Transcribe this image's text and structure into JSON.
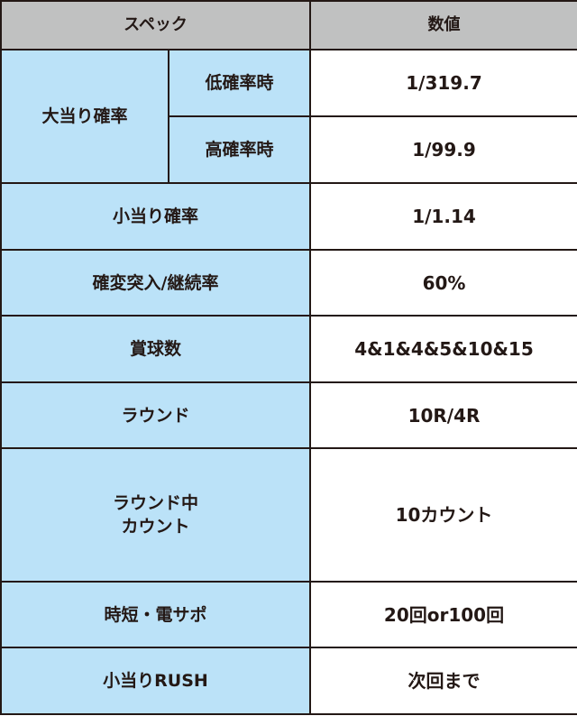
{
  "header": {
    "spec": "スペック",
    "value": "数値"
  },
  "jackpot": {
    "label": "大当り確率",
    "low_label": "低確率時",
    "low_value": "1/319.7",
    "high_label": "高確率時",
    "high_value": "1/99.9"
  },
  "rows": [
    {
      "label": "小当り確率",
      "value": "1/1.14"
    },
    {
      "label": "確変突入/継続率",
      "value": "60%"
    },
    {
      "label": "賞球数",
      "value": "4&1&4&5&10&15"
    },
    {
      "label": "ラウンド",
      "value": "10R/4R"
    },
    {
      "label_line1": "ラウンド中",
      "label_line2": "カウント",
      "value": "10カウント"
    },
    {
      "label": "時短・電サポ",
      "value": "20回or100回"
    },
    {
      "label": "小当りRUSH",
      "value": "次回まで"
    }
  ],
  "colors": {
    "header_bg": "#c0c1c1",
    "label_bg": "#bbe2f8",
    "border": "#231815"
  }
}
